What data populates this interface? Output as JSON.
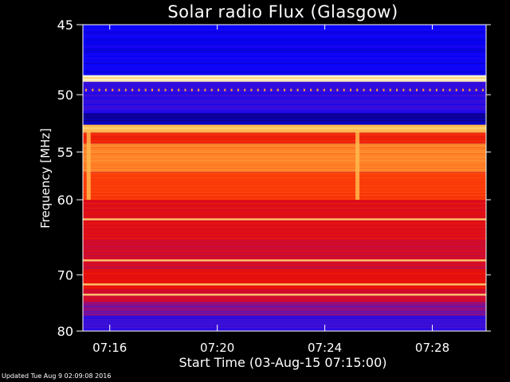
{
  "chart_data": {
    "type": "heatmap",
    "title": "Solar radio Flux (Glasgow)",
    "xlabel": "Start Time (03-Aug-15 07:15:00)",
    "ylabel": "Frequency [MHz]",
    "x_ticks": [
      "07:16",
      "07:20",
      "07:24",
      "07:28"
    ],
    "x_tick_minutes": [
      1,
      5,
      9,
      13
    ],
    "xlim_minutes": [
      0,
      15
    ],
    "y_ticks": [
      "45",
      "50",
      "55",
      "60",
      "70",
      "80"
    ],
    "y_tick_values": [
      45,
      50,
      55,
      60,
      70,
      80
    ],
    "ylim": [
      45,
      80
    ],
    "y_scale": "reciprocal",
    "colormap": "blue-red-yellow-white",
    "bands": [
      {
        "from": 45.0,
        "to": 48.5,
        "level": 0.12
      },
      {
        "from": 48.5,
        "to": 49.0,
        "level": 0.98
      },
      {
        "from": 49.0,
        "to": 51.5,
        "level": 0.18
      },
      {
        "from": 51.5,
        "to": 52.5,
        "level": 0.05
      },
      {
        "from": 52.5,
        "to": 53.2,
        "level": 0.85
      },
      {
        "from": 53.2,
        "to": 54.2,
        "level": 0.55
      },
      {
        "from": 54.2,
        "to": 57.0,
        "level": 0.75
      },
      {
        "from": 57.0,
        "to": 60.0,
        "level": 0.6
      },
      {
        "from": 60.0,
        "to": 65.0,
        "level": 0.47
      },
      {
        "from": 65.0,
        "to": 69.0,
        "level": 0.42
      },
      {
        "from": 69.0,
        "to": 72.5,
        "level": 0.5
      },
      {
        "from": 72.5,
        "to": 74.5,
        "level": 0.4
      },
      {
        "from": 74.5,
        "to": 77.0,
        "level": 0.3
      },
      {
        "from": 77.0,
        "to": 80.0,
        "level": 0.2
      }
    ],
    "hot_lines": [
      48.7,
      52.8,
      71.5,
      73.2,
      67.8,
      62.3
    ],
    "bursts": [
      {
        "t": 0.2,
        "f_from": 53,
        "f_to": 60
      },
      {
        "t": 10.2,
        "f_from": 53,
        "f_to": 60
      }
    ]
  },
  "footer": {
    "updated": "Updated Tue Aug  9 02:09:08 2016"
  }
}
